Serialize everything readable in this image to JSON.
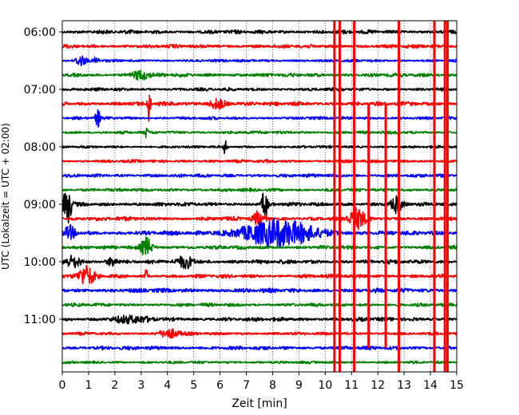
{
  "chart_data": {
    "type": "line",
    "title": "",
    "xlabel": "Zeit  [min]",
    "ylabel": "UTC (Lokalzeit = UTC + 02:00)",
    "xlim": [
      0,
      15
    ],
    "x_ticks": [
      "0",
      "1",
      "2",
      "3",
      "4",
      "5",
      "6",
      "7",
      "8",
      "9",
      "10",
      "11",
      "12",
      "13",
      "14",
      "15"
    ],
    "y_ticks": [
      {
        "label": "06:00",
        "row": 0
      },
      {
        "label": "07:00",
        "row": 4
      },
      {
        "label": "08:00",
        "row": 8
      },
      {
        "label": "09:00",
        "row": 12
      },
      {
        "label": "10:00",
        "row": 16
      },
      {
        "label": "11:00",
        "row": 20
      }
    ],
    "row_interval_min": 15,
    "row_count": 24,
    "color_cycle": [
      "#000000",
      "#ff0000",
      "#0000ff",
      "#008000"
    ],
    "grid": "vertical dotted at every minute",
    "legend": "none",
    "events": [
      {
        "row": 2,
        "x": 0.7,
        "amp": 0.8,
        "width": 0.2
      },
      {
        "row": 2,
        "x": 1.3,
        "amp": 0.6,
        "width": 0.1
      },
      {
        "row": 3,
        "x": 3.0,
        "amp": 0.7,
        "width": 0.3
      },
      {
        "row": 5,
        "x": 3.3,
        "amp": 3.5,
        "width": 0.05
      },
      {
        "row": 5,
        "x": 5.9,
        "amp": 0.8,
        "width": 0.3
      },
      {
        "row": 6,
        "x": 1.35,
        "amp": 1.2,
        "width": 0.1
      },
      {
        "row": 7,
        "x": 3.2,
        "amp": 0.8,
        "width": 0.05
      },
      {
        "row": 8,
        "x": 6.2,
        "amp": 1.4,
        "width": 0.05
      },
      {
        "row": 12,
        "x": 0.2,
        "amp": 3.0,
        "width": 0.15
      },
      {
        "row": 12,
        "x": 7.7,
        "amp": 2.5,
        "width": 0.1
      },
      {
        "row": 12,
        "x": 12.7,
        "amp": 1.2,
        "width": 0.2
      },
      {
        "row": 13,
        "x": 7.5,
        "amp": 1.2,
        "width": 0.2
      },
      {
        "row": 13,
        "x": 11.2,
        "amp": 1.5,
        "width": 0.3
      },
      {
        "row": 14,
        "x": 8.2,
        "amp": 2.0,
        "width": 1.4
      },
      {
        "row": 14,
        "x": 0.3,
        "amp": 1.0,
        "width": 0.2
      },
      {
        "row": 15,
        "x": 3.2,
        "amp": 1.5,
        "width": 0.2
      },
      {
        "row": 16,
        "x": 0.4,
        "amp": 0.8,
        "width": 0.3
      },
      {
        "row": 16,
        "x": 1.9,
        "amp": 0.7,
        "width": 0.2
      },
      {
        "row": 16,
        "x": 4.7,
        "amp": 0.9,
        "width": 0.3
      },
      {
        "row": 17,
        "x": 0.9,
        "amp": 1.5,
        "width": 0.3
      },
      {
        "row": 17,
        "x": 3.2,
        "amp": 1.2,
        "width": 0.05
      },
      {
        "row": 20,
        "x": 2.6,
        "amp": 0.5,
        "width": 0.6
      },
      {
        "row": 21,
        "x": 4.1,
        "amp": 0.6,
        "width": 0.4
      }
    ],
    "red_spikes": [
      {
        "x": 10.35,
        "from_row": -1,
        "to_row": 24
      },
      {
        "x": 10.55,
        "from_row": -1,
        "to_row": 24
      },
      {
        "x": 11.1,
        "from_row": -1,
        "to_row": 24
      },
      {
        "x": 11.65,
        "from_row": 5,
        "to_row": 22
      },
      {
        "x": 12.3,
        "from_row": 5,
        "to_row": 22
      },
      {
        "x": 12.8,
        "from_row": -1,
        "to_row": 24
      },
      {
        "x": 14.15,
        "from_row": -1,
        "to_row": 24
      },
      {
        "x": 14.55,
        "from_row": -1,
        "to_row": 24
      },
      {
        "x": 14.65,
        "from_row": -1,
        "to_row": 24
      }
    ]
  }
}
